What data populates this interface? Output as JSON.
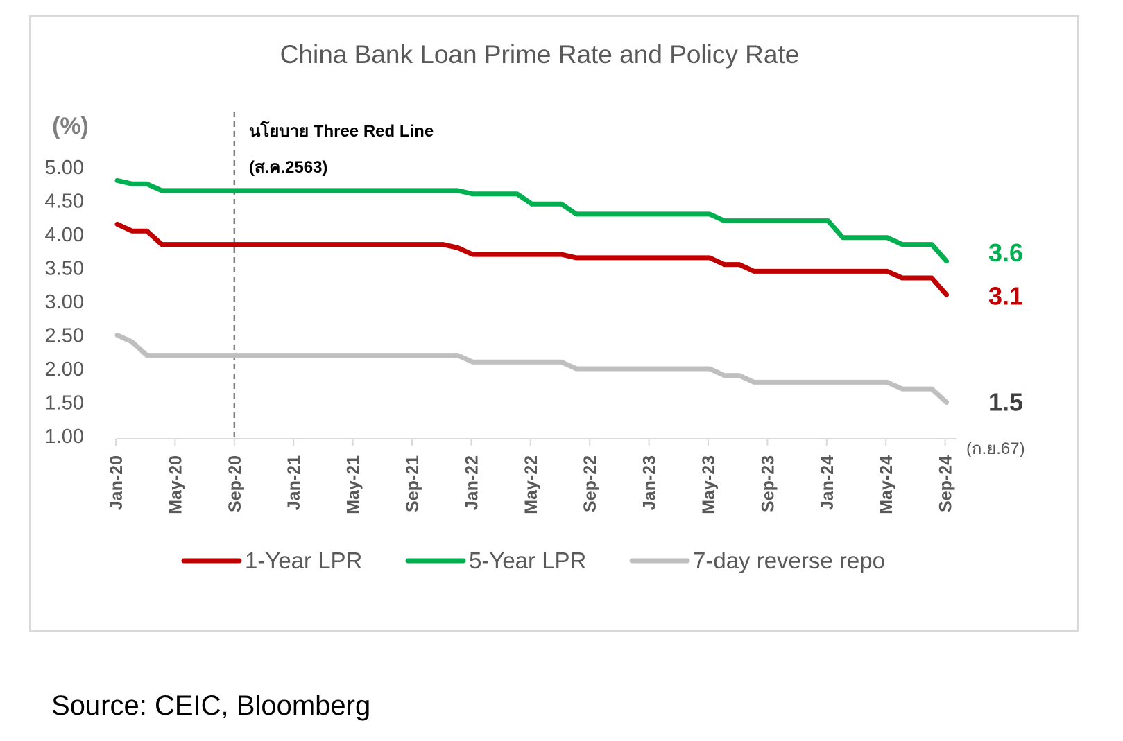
{
  "chart_data": {
    "type": "line",
    "title": "China Bank Loan Prime Rate and Policy Rate",
    "ylabel": "(%)",
    "xlabel": "",
    "ylim": [
      1.0,
      5.0
    ],
    "yticks": [
      "5.00",
      "4.50",
      "4.00",
      "3.50",
      "3.00",
      "2.50",
      "2.00",
      "1.50",
      "1.00"
    ],
    "xtick_labels": [
      "Jan-20",
      "May-20",
      "Sep-20",
      "Jan-21",
      "May-21",
      "Sep-21",
      "Jan-22",
      "May-22",
      "Sep-22",
      "Jan-23",
      "May-23",
      "Sep-23",
      "Jan-24",
      "May-24",
      "Sep-24"
    ],
    "x": [
      "Jan-20",
      "Feb-20",
      "Mar-20",
      "Apr-20",
      "May-20",
      "Jun-20",
      "Jul-20",
      "Aug-20",
      "Sep-20",
      "Oct-20",
      "Nov-20",
      "Dec-20",
      "Jan-21",
      "Feb-21",
      "Mar-21",
      "Apr-21",
      "May-21",
      "Jun-21",
      "Jul-21",
      "Aug-21",
      "Sep-21",
      "Oct-21",
      "Nov-21",
      "Dec-21",
      "Jan-22",
      "Feb-22",
      "Mar-22",
      "Apr-22",
      "May-22",
      "Jun-22",
      "Jul-22",
      "Aug-22",
      "Sep-22",
      "Oct-22",
      "Nov-22",
      "Dec-22",
      "Jan-23",
      "Feb-23",
      "Mar-23",
      "Apr-23",
      "May-23",
      "Jun-23",
      "Jul-23",
      "Aug-23",
      "Sep-23",
      "Oct-23",
      "Nov-23",
      "Dec-23",
      "Jan-24",
      "Feb-24",
      "Mar-24",
      "Apr-24",
      "May-24",
      "Jun-24",
      "Jul-24",
      "Aug-24",
      "Sep-24"
    ],
    "series": [
      {
        "name": "1-Year LPR",
        "color": "#c00000",
        "values": [
          4.15,
          4.05,
          4.05,
          3.85,
          3.85,
          3.85,
          3.85,
          3.85,
          3.85,
          3.85,
          3.85,
          3.85,
          3.85,
          3.85,
          3.85,
          3.85,
          3.85,
          3.85,
          3.85,
          3.85,
          3.85,
          3.85,
          3.85,
          3.8,
          3.7,
          3.7,
          3.7,
          3.7,
          3.7,
          3.7,
          3.7,
          3.65,
          3.65,
          3.65,
          3.65,
          3.65,
          3.65,
          3.65,
          3.65,
          3.65,
          3.65,
          3.55,
          3.55,
          3.45,
          3.45,
          3.45,
          3.45,
          3.45,
          3.45,
          3.45,
          3.45,
          3.45,
          3.45,
          3.35,
          3.35,
          3.35,
          3.1
        ]
      },
      {
        "name": "5-Year LPR",
        "color": "#00b050",
        "values": [
          4.8,
          4.75,
          4.75,
          4.65,
          4.65,
          4.65,
          4.65,
          4.65,
          4.65,
          4.65,
          4.65,
          4.65,
          4.65,
          4.65,
          4.65,
          4.65,
          4.65,
          4.65,
          4.65,
          4.65,
          4.65,
          4.65,
          4.65,
          4.65,
          4.6,
          4.6,
          4.6,
          4.6,
          4.45,
          4.45,
          4.45,
          4.3,
          4.3,
          4.3,
          4.3,
          4.3,
          4.3,
          4.3,
          4.3,
          4.3,
          4.3,
          4.2,
          4.2,
          4.2,
          4.2,
          4.2,
          4.2,
          4.2,
          4.2,
          3.95,
          3.95,
          3.95,
          3.95,
          3.85,
          3.85,
          3.85,
          3.6
        ]
      },
      {
        "name": "7-day reverse repo",
        "color": "#bfbfbf",
        "values": [
          2.5,
          2.4,
          2.2,
          2.2,
          2.2,
          2.2,
          2.2,
          2.2,
          2.2,
          2.2,
          2.2,
          2.2,
          2.2,
          2.2,
          2.2,
          2.2,
          2.2,
          2.2,
          2.2,
          2.2,
          2.2,
          2.2,
          2.2,
          2.2,
          2.1,
          2.1,
          2.1,
          2.1,
          2.1,
          2.1,
          2.1,
          2.0,
          2.0,
          2.0,
          2.0,
          2.0,
          2.0,
          2.0,
          2.0,
          2.0,
          2.0,
          1.9,
          1.9,
          1.8,
          1.8,
          1.8,
          1.8,
          1.8,
          1.8,
          1.8,
          1.8,
          1.8,
          1.8,
          1.7,
          1.7,
          1.7,
          1.5
        ]
      }
    ],
    "end_labels": [
      {
        "text": "3.6",
        "color": "#00b050"
      },
      {
        "text": "3.1",
        "color": "#c00000"
      },
      {
        "text": "1.5",
        "color": "#404040"
      }
    ],
    "date_note": "(ก.ย.67)",
    "annotation": {
      "line1": "นโยบาย Three Red Line",
      "line2": "(ส.ค.2563)",
      "at": "Sep-20"
    },
    "grid": false,
    "legend_position": "bottom"
  },
  "source": "Source:  CEIC,  Bloomberg"
}
